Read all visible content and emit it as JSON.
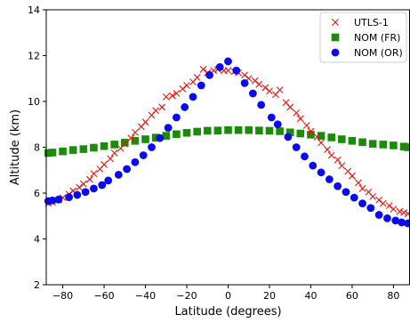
{
  "chart_data": {
    "type": "scatter",
    "xlabel": "Latitude (degrees)",
    "ylabel": "Altitude (km)",
    "xlim": [
      -88,
      88
    ],
    "ylim": [
      2,
      14
    ],
    "xticks": [
      -80,
      -60,
      -40,
      -20,
      0,
      20,
      40,
      60,
      80
    ],
    "yticks": [
      2,
      4,
      6,
      8,
      10,
      12,
      14
    ],
    "xtick_labels": [
      "−80",
      "−60",
      "−40",
      "−20",
      "0",
      "20",
      "40",
      "60",
      "80"
    ],
    "ytick_labels": [
      "2",
      "4",
      "6",
      "8",
      "10",
      "12",
      "14"
    ],
    "grid": false,
    "legend_position": "top-right",
    "series": [
      {
        "name": "UTLS-1",
        "marker": "x",
        "color": "#e8120c",
        "points": [
          [
            -87,
            5.55
          ],
          [
            -85,
            5.6
          ],
          [
            -82,
            5.7
          ],
          [
            -80,
            5.8
          ],
          [
            -77,
            5.95
          ],
          [
            -75,
            6.1
          ],
          [
            -72,
            6.25
          ],
          [
            -70,
            6.4
          ],
          [
            -67,
            6.6
          ],
          [
            -65,
            6.85
          ],
          [
            -62,
            7.05
          ],
          [
            -60,
            7.25
          ],
          [
            -57,
            7.5
          ],
          [
            -55,
            7.75
          ],
          [
            -52,
            7.95
          ],
          [
            -50,
            8.15
          ],
          [
            -47,
            8.4
          ],
          [
            -45,
            8.65
          ],
          [
            -42,
            8.9
          ],
          [
            -40,
            9.1
          ],
          [
            -37,
            9.4
          ],
          [
            -35,
            9.6
          ],
          [
            -32,
            9.75
          ],
          [
            -30,
            10.2
          ],
          [
            -27,
            10.25
          ],
          [
            -25,
            10.35
          ],
          [
            -22,
            10.55
          ],
          [
            -20,
            10.7
          ],
          [
            -17,
            10.85
          ],
          [
            -15,
            11.05
          ],
          [
            -12,
            11.4
          ],
          [
            -10,
            11.25
          ],
          [
            -7,
            11.35
          ],
          [
            -5,
            11.4
          ],
          [
            -2,
            11.35
          ],
          [
            0,
            11.35
          ],
          [
            3,
            11.3
          ],
          [
            5,
            11.25
          ],
          [
            8,
            11.15
          ],
          [
            10,
            11.0
          ],
          [
            13,
            10.9
          ],
          [
            15,
            10.75
          ],
          [
            18,
            10.6
          ],
          [
            20,
            10.45
          ],
          [
            23,
            10.3
          ],
          [
            25,
            10.5
          ],
          [
            28,
            9.95
          ],
          [
            30,
            9.75
          ],
          [
            33,
            9.5
          ],
          [
            35,
            9.25
          ],
          [
            38,
            8.95
          ],
          [
            40,
            8.7
          ],
          [
            43,
            8.45
          ],
          [
            45,
            8.2
          ],
          [
            48,
            7.9
          ],
          [
            50,
            7.65
          ],
          [
            53,
            7.45
          ],
          [
            55,
            7.2
          ],
          [
            58,
            6.95
          ],
          [
            60,
            6.75
          ],
          [
            63,
            6.45
          ],
          [
            65,
            6.2
          ],
          [
            68,
            6.05
          ],
          [
            70,
            5.85
          ],
          [
            73,
            5.7
          ],
          [
            75,
            5.55
          ],
          [
            78,
            5.45
          ],
          [
            80,
            5.3
          ],
          [
            83,
            5.2
          ],
          [
            85,
            5.15
          ],
          [
            87,
            5.1
          ]
        ]
      },
      {
        "name": "NOM (FR)",
        "marker": "square",
        "color": "#1a8c0a",
        "points": [
          [
            -87,
            7.75
          ],
          [
            -85,
            7.77
          ],
          [
            -80,
            7.82
          ],
          [
            -75,
            7.88
          ],
          [
            -70,
            7.92
          ],
          [
            -65,
            7.98
          ],
          [
            -60,
            8.05
          ],
          [
            -55,
            8.12
          ],
          [
            -50,
            8.2
          ],
          [
            -45,
            8.28
          ],
          [
            -40,
            8.35
          ],
          [
            -35,
            8.42
          ],
          [
            -30,
            8.5
          ],
          [
            -25,
            8.57
          ],
          [
            -20,
            8.63
          ],
          [
            -15,
            8.68
          ],
          [
            -10,
            8.72
          ],
          [
            -5,
            8.73
          ],
          [
            0,
            8.75
          ],
          [
            5,
            8.75
          ],
          [
            10,
            8.75
          ],
          [
            15,
            8.73
          ],
          [
            20,
            8.72
          ],
          [
            25,
            8.7
          ],
          [
            30,
            8.65
          ],
          [
            35,
            8.6
          ],
          [
            40,
            8.55
          ],
          [
            45,
            8.5
          ],
          [
            50,
            8.43
          ],
          [
            55,
            8.35
          ],
          [
            60,
            8.28
          ],
          [
            65,
            8.22
          ],
          [
            70,
            8.15
          ],
          [
            75,
            8.12
          ],
          [
            80,
            8.08
          ],
          [
            85,
            8.03
          ],
          [
            87,
            8.0
          ]
        ]
      },
      {
        "name": "NOM (OR)",
        "marker": "circle",
        "color": "#0a0aee",
        "points": [
          [
            -87,
            5.65
          ],
          [
            -85,
            5.68
          ],
          [
            -82,
            5.72
          ],
          [
            -77,
            5.82
          ],
          [
            -73,
            5.92
          ],
          [
            -69,
            6.05
          ],
          [
            -65,
            6.2
          ],
          [
            -61,
            6.35
          ],
          [
            -58,
            6.55
          ],
          [
            -53,
            6.8
          ],
          [
            -49,
            7.05
          ],
          [
            -45,
            7.35
          ],
          [
            -41,
            7.65
          ],
          [
            -37,
            8.0
          ],
          [
            -33,
            8.4
          ],
          [
            -29,
            8.85
          ],
          [
            -25,
            9.3
          ],
          [
            -21,
            9.75
          ],
          [
            -17,
            10.2
          ],
          [
            -13,
            10.7
          ],
          [
            -9,
            11.15
          ],
          [
            -4,
            11.5
          ],
          [
            0,
            11.75
          ],
          [
            4,
            11.35
          ],
          [
            8,
            10.8
          ],
          [
            12,
            10.35
          ],
          [
            16,
            9.85
          ],
          [
            21,
            9.3
          ],
          [
            24,
            9.0
          ],
          [
            29,
            8.45
          ],
          [
            33,
            8.0
          ],
          [
            37,
            7.6
          ],
          [
            41,
            7.2
          ],
          [
            45,
            6.9
          ],
          [
            49,
            6.6
          ],
          [
            53,
            6.3
          ],
          [
            57,
            6.05
          ],
          [
            61,
            5.8
          ],
          [
            65,
            5.55
          ],
          [
            69,
            5.35
          ],
          [
            73,
            5.05
          ],
          [
            77,
            4.9
          ],
          [
            81,
            4.8
          ],
          [
            84,
            4.72
          ],
          [
            87,
            4.68
          ]
        ]
      }
    ]
  }
}
